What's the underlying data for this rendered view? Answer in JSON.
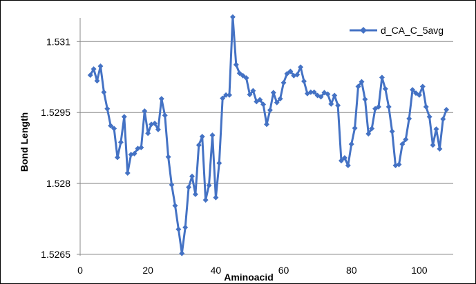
{
  "chart_data": {
    "type": "line",
    "title": "",
    "xlabel": "Aminoacid",
    "ylabel": "Bond Length",
    "xlim": [
      0,
      110
    ],
    "ylim": [
      1.5265,
      1.5315
    ],
    "x_ticks": [
      "0",
      "20",
      "40",
      "60",
      "80",
      "100"
    ],
    "y_ticks": [
      "1.5265",
      "1.528",
      "1.5295",
      "1.531"
    ],
    "grid": "horizontal",
    "legend_position": "top-right",
    "series_color": "#4472C4",
    "series": [
      {
        "name": "d_CA_C_5avg",
        "x": [
          3,
          4,
          5,
          6,
          7,
          8,
          9,
          10,
          11,
          12,
          13,
          14,
          15,
          16,
          17,
          18,
          19,
          20,
          21,
          22,
          23,
          24,
          25,
          26,
          27,
          28,
          29,
          30,
          31,
          32,
          33,
          34,
          35,
          36,
          37,
          38,
          39,
          40,
          41,
          42,
          43,
          44,
          45,
          46,
          47,
          48,
          49,
          50,
          51,
          52,
          53,
          54,
          55,
          56,
          57,
          58,
          59,
          60,
          61,
          62,
          63,
          64,
          65,
          66,
          67,
          68,
          69,
          70,
          71,
          72,
          73,
          74,
          75,
          76,
          77,
          78,
          79,
          80,
          81,
          82,
          83,
          84,
          85,
          86,
          87,
          88,
          89,
          90,
          91,
          92,
          93,
          94,
          95,
          96,
          97,
          98,
          99,
          100,
          101,
          102,
          103,
          104,
          105,
          106,
          107,
          108
        ],
        "values": [
          1.53029,
          1.53042,
          1.53017,
          1.53048,
          1.52993,
          1.52958,
          1.52922,
          1.52916,
          1.52855,
          1.52887,
          1.52941,
          1.52822,
          1.52861,
          1.52863,
          1.52874,
          1.52876,
          1.52953,
          1.52906,
          1.52925,
          1.52927,
          1.52914,
          1.52979,
          1.52944,
          1.52856,
          1.52797,
          1.52753,
          1.52703,
          1.52652,
          1.52707,
          1.52792,
          1.52815,
          1.52777,
          1.52881,
          1.52899,
          1.52765,
          1.52796,
          1.52902,
          1.5277,
          1.52843,
          1.5298,
          1.52987,
          1.52987,
          1.53152,
          1.53051,
          1.53033,
          1.53028,
          1.53023,
          1.52988,
          1.52996,
          1.52973,
          1.52977,
          1.52967,
          1.52925,
          1.52955,
          1.52992,
          1.52971,
          1.52979,
          1.53013,
          1.53032,
          1.53037,
          1.53028,
          1.5303,
          1.53046,
          1.53016,
          1.5299,
          1.52993,
          1.52993,
          1.52986,
          1.52983,
          1.52992,
          1.52989,
          1.52968,
          1.52986,
          1.52965,
          1.52848,
          1.52854,
          1.52838,
          1.52883,
          1.52917,
          1.53005,
          1.53015,
          1.52978,
          1.52905,
          1.52916,
          1.52958,
          1.52962,
          1.53024,
          1.53,
          1.52962,
          1.5291,
          1.52838,
          1.5284,
          1.52883,
          1.52893,
          1.52937,
          1.52998,
          1.52991,
          1.52987,
          1.53005,
          1.52962,
          1.52941,
          1.52881,
          1.52915,
          1.52873,
          1.52936,
          1.52956
        ]
      }
    ]
  }
}
